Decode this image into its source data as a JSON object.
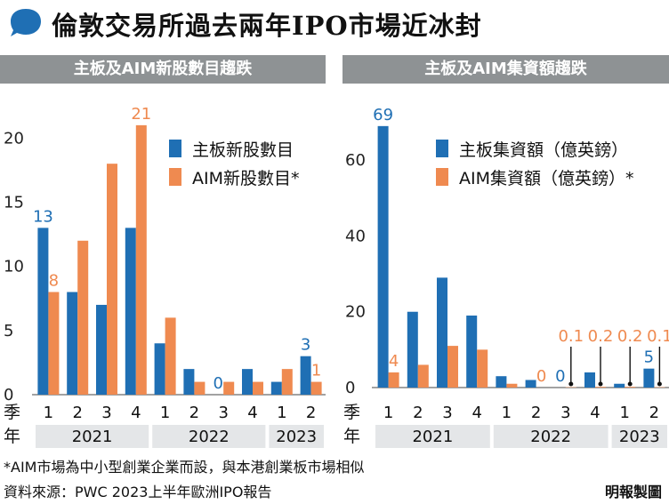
{
  "header": {
    "title": "倫敦交易所過去兩年IPO市場近冰封"
  },
  "colors": {
    "main_board": "#1f6fb4",
    "aim": "#ef8a50",
    "band": "#e4e6e8",
    "panel_head": "#8e9294"
  },
  "chart_data": [
    {
      "type": "bar",
      "title": "主板及AIM新股數目趨跌",
      "x_quarter_label": "季",
      "x_year_label": "年",
      "categories": [
        "1",
        "2",
        "3",
        "4",
        "1",
        "2",
        "3",
        "4",
        "1",
        "2"
      ],
      "years": [
        {
          "label": "2021",
          "span": 4
        },
        {
          "label": "2022",
          "span": 4
        },
        {
          "label": "2023",
          "span": 2
        }
      ],
      "series": [
        {
          "name": "主板新股數目",
          "values": [
            13,
            8,
            7,
            13,
            4,
            2,
            0,
            2,
            1,
            3
          ]
        },
        {
          "name": "AIM新股數目*",
          "values": [
            8,
            12,
            18,
            21,
            6,
            1,
            1,
            1,
            2,
            1
          ]
        }
      ],
      "data_labels": [
        {
          "series": 0,
          "index": 0,
          "text": "13"
        },
        {
          "series": 1,
          "index": 0,
          "text": "8"
        },
        {
          "series": 1,
          "index": 3,
          "text": "21"
        },
        {
          "series": 0,
          "index": 6,
          "text": "0"
        },
        {
          "series": 0,
          "index": 9,
          "text": "3"
        },
        {
          "series": 1,
          "index": 9,
          "text": "1"
        }
      ],
      "yticks": [
        0,
        5,
        10,
        15,
        20
      ],
      "ylim": [
        0,
        23
      ],
      "legend_position": "top-right",
      "grid": false
    },
    {
      "type": "bar",
      "title": "主板及AIM集資額趨跌",
      "x_quarter_label": "季",
      "x_year_label": "年",
      "categories": [
        "1",
        "2",
        "3",
        "4",
        "1",
        "2",
        "3",
        "4",
        "1",
        "2"
      ],
      "years": [
        {
          "label": "2021",
          "span": 4
        },
        {
          "label": "2022",
          "span": 4
        },
        {
          "label": "2023",
          "span": 2
        }
      ],
      "series": [
        {
          "name": "主板集資額（億英鎊）",
          "values": [
            69,
            20,
            29,
            19,
            3,
            2,
            0,
            4,
            1,
            5
          ]
        },
        {
          "name": "AIM集資額（億英鎊）*",
          "values": [
            4,
            6,
            11,
            10,
            1,
            0,
            0.1,
            0.2,
            0.2,
            0.1
          ]
        }
      ],
      "data_labels": [
        {
          "series": 0,
          "index": 0,
          "text": "69"
        },
        {
          "series": 1,
          "index": 0,
          "text": "4"
        },
        {
          "series": 1,
          "index": 5,
          "text": "0"
        },
        {
          "series": 0,
          "index": 6,
          "text": "0"
        },
        {
          "series": 1,
          "index": 6,
          "text": "0.1",
          "callout": true
        },
        {
          "series": 1,
          "index": 7,
          "text": "0.2",
          "callout": true
        },
        {
          "series": 1,
          "index": 8,
          "text": "0.2",
          "callout": true
        },
        {
          "series": 0,
          "index": 9,
          "text": "5"
        },
        {
          "series": 1,
          "index": 9,
          "text": "0.1",
          "callout": true
        }
      ],
      "yticks": [
        0,
        20,
        40,
        60
      ],
      "ylim": [
        0,
        76
      ],
      "legend_position": "top-right",
      "grid": false
    }
  ],
  "footer": {
    "note": "*AIM市場為中小型創業企業而設，與本港創業板市場相似",
    "source": "資料來源：PWC 2023上半年歐洲IPO報告",
    "credit": "明報製圖"
  }
}
